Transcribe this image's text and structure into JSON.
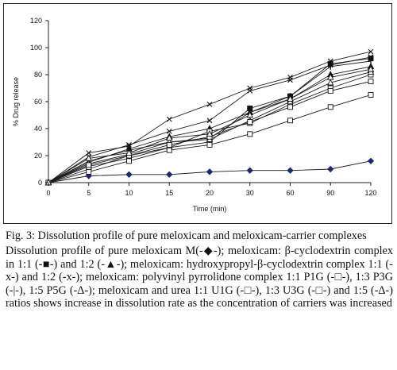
{
  "figure": {
    "title": "Fig. 3: Dissolution profile of pure meloxicam and meloxicam-carrier complexes",
    "description": "Dissolution profile of pure meloxicam M(-◆-); meloxicam: β-cyclodextrin complex in 1:1 (-■-) and 1:2 (-▲-); meloxicam: hydroxypropyl-β-cyclodextrin complex 1:1 (-x-) and 1:2 (-x-); meloxicam: polyvinyl pyrrolidone complex 1:1 P1G (-□-), 1:3 P3G (-|-), 1:5 P5G (-Δ-); meloxicam and urea 1:1 U1G (-□-), 1:3 U3G (-□-) and 1:5 (-Δ-) ratios shows increase in dissolution rate as the concentration of carriers was increased"
  },
  "chart_data": {
    "type": "line",
    "title": "",
    "xlabel": "Time (min)",
    "ylabel": "% Drug release",
    "categories": [
      "0",
      "5",
      "10",
      "15",
      "20",
      "30",
      "60",
      "90",
      "120"
    ],
    "ylim": [
      0,
      120
    ],
    "yticks": [
      0,
      20,
      40,
      60,
      80,
      100,
      120
    ],
    "grid": false,
    "series": [
      {
        "marker": "diamond",
        "values": [
          0,
          5,
          6,
          6,
          8,
          9,
          9,
          10,
          16
        ]
      },
      {
        "marker": "square",
        "values": [
          0,
          12,
          18,
          26,
          30,
          55,
          64,
          88,
          92
        ]
      },
      {
        "marker": "triangle",
        "values": [
          0,
          15,
          25,
          34,
          40,
          52,
          62,
          80,
          86
        ]
      },
      {
        "marker": "x",
        "values": [
          0,
          22,
          27,
          47,
          58,
          70,
          78,
          90,
          97
        ]
      },
      {
        "marker": "x",
        "values": [
          0,
          19,
          28,
          38,
          46,
          68,
          76,
          87,
          93
        ]
      },
      {
        "marker": "square-open",
        "values": [
          0,
          10,
          20,
          26,
          38,
          44,
          58,
          70,
          80
        ]
      },
      {
        "marker": "bar",
        "values": [
          0,
          16,
          24,
          30,
          33,
          52,
          64,
          86,
          90
        ]
      },
      {
        "marker": "triangle-open",
        "values": [
          0,
          14,
          21,
          30,
          32,
          46,
          60,
          74,
          82
        ]
      },
      {
        "marker": "square-open",
        "values": [
          0,
          8,
          16,
          24,
          28,
          36,
          46,
          56,
          65
        ]
      },
      {
        "marker": "square-open",
        "values": [
          0,
          13,
          20,
          28,
          34,
          45,
          56,
          68,
          75
        ]
      },
      {
        "marker": "triangle-open",
        "values": [
          0,
          18,
          22,
          33,
          36,
          50,
          62,
          78,
          84
        ]
      }
    ]
  }
}
